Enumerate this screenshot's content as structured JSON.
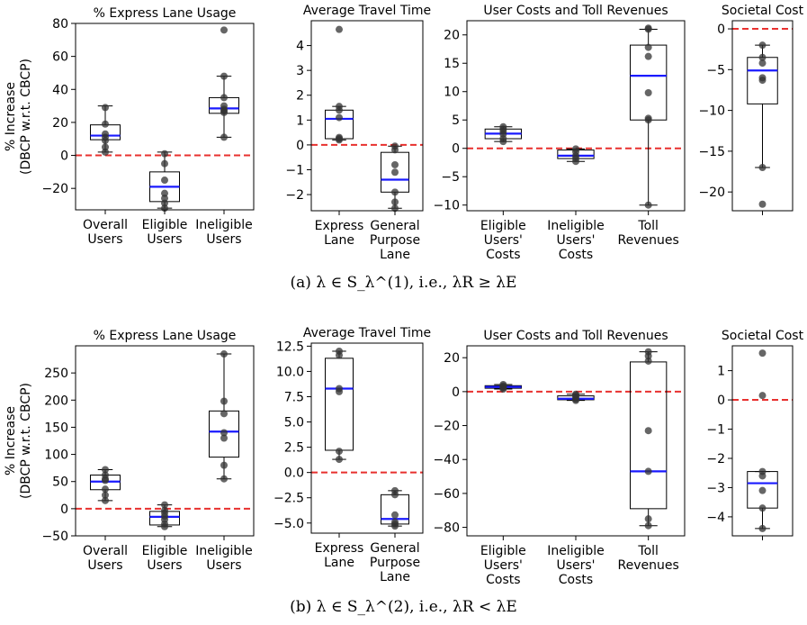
{
  "figure": {
    "caption_a": "(a) λ ∈ S_λ^(1), i.e., λR ≥ λE",
    "caption_b": "(b) λ ∈ S_λ^(2), i.e., λR < λE"
  },
  "colors": {
    "box": "#000000",
    "median": "#1a1aff",
    "zero_line": "#e8312f",
    "point": "#333333"
  },
  "chart_data": [
    {
      "type": "box",
      "row": "a",
      "title": "% Express Lane Usage",
      "ylabel": "% Increase\n(DBCP w.r.t. CBCP)",
      "categories": [
        "Overall\nUsers",
        "Eligible\nUsers",
        "Ineligible\nUsers"
      ],
      "ylim": [
        -33,
        80
      ],
      "yticks": [
        -20,
        0,
        20,
        40,
        60,
        80
      ],
      "ytick_labels": [
        "−20",
        "0",
        "20",
        "40",
        "60",
        "80"
      ],
      "reference_line": 0,
      "boxes": [
        {
          "whislo": 2,
          "q1": 9.5,
          "med": 12,
          "q3": 18.5,
          "whishi": 30,
          "points": [
            2,
            5,
            9,
            11,
            13,
            19,
            29
          ]
        },
        {
          "whislo": -32,
          "q1": -28,
          "med": -19,
          "q3": -10,
          "whishi": 2,
          "points": [
            -32,
            -29,
            -26,
            -23,
            -15,
            -5,
            1
          ]
        },
        {
          "whislo": 11,
          "q1": 25.5,
          "med": 28.5,
          "q3": 35,
          "whishi": 48,
          "points": [
            11,
            26,
            27,
            28,
            30,
            35,
            48,
            76
          ]
        }
      ]
    },
    {
      "type": "box",
      "row": "a",
      "title": "Average Travel Time",
      "categories": [
        "Express\nLane",
        "General\nPurpose\nLane"
      ],
      "ylim": [
        -2.65,
        5
      ],
      "yticks": [
        -2,
        -1,
        0,
        1,
        2,
        3,
        4
      ],
      "ytick_labels": [
        "−2",
        "−1",
        "0",
        "1",
        "2",
        "3",
        "4"
      ],
      "reference_line": 0,
      "boxes": [
        {
          "whislo": 0.2,
          "q1": 0.25,
          "med": 1.05,
          "q3": 1.4,
          "whishi": 1.55,
          "points": [
            0.2,
            0.25,
            0.3,
            1.1,
            1.4,
            1.55,
            4.65
          ]
        },
        {
          "whislo": -2.55,
          "q1": -1.9,
          "med": -1.4,
          "q3": -0.3,
          "whishi": -0.05,
          "points": [
            -2.55,
            -2.3,
            -1.9,
            -1.1,
            -0.8,
            -0.2,
            -0.05
          ]
        }
      ]
    },
    {
      "type": "box",
      "row": "a",
      "title": "User Costs and Toll Revenues",
      "categories": [
        "Eligible\nUsers'\nCosts",
        "Ineligible\nUsers'\nCosts",
        "Toll\nRevenues"
      ],
      "ylim": [
        -11,
        22.5
      ],
      "yticks": [
        -10,
        -5,
        0,
        5,
        10,
        15,
        20
      ],
      "ytick_labels": [
        "−10",
        "−5",
        "0",
        "5",
        "10",
        "15",
        "20"
      ],
      "reference_line": 0,
      "boxes": [
        {
          "whislo": 1.2,
          "q1": 1.7,
          "med": 2.6,
          "q3": 3.4,
          "whishi": 3.8,
          "points": [
            1.2,
            1.7,
            2.5,
            3.0,
            3.4,
            3.8
          ]
        },
        {
          "whislo": -2.3,
          "q1": -1.8,
          "med": -1.3,
          "q3": -0.3,
          "whishi": -0.1,
          "points": [
            -2.3,
            -1.8,
            -1.3,
            -0.6,
            -0.1
          ]
        },
        {
          "whislo": -10,
          "q1": 5,
          "med": 12.8,
          "q3": 18.2,
          "whishi": 21,
          "points": [
            -10,
            5,
            5.3,
            9.8,
            16.2,
            17.8,
            21,
            21.2
          ]
        }
      ]
    },
    {
      "type": "box",
      "row": "a",
      "title": "Societal Cost",
      "categories": [
        ""
      ],
      "ylim": [
        -22.3,
        1
      ],
      "yticks": [
        -20,
        -15,
        -10,
        -5,
        0
      ],
      "ytick_labels": [
        "−20",
        "−15",
        "−10",
        "−5",
        "0"
      ],
      "reference_line": 0,
      "boxes": [
        {
          "whislo": -17,
          "q1": -9.2,
          "med": -5.1,
          "q3": -3.5,
          "whishi": -2,
          "points": [
            -21.5,
            -17,
            -6.3,
            -6.0,
            -4.2,
            -3.5,
            -2.0
          ]
        }
      ]
    },
    {
      "type": "box",
      "row": "b",
      "title": "% Express Lane Usage",
      "ylabel": "% Increase\n(DBCP w.r.t. CBCP)",
      "categories": [
        "Overall\nUsers",
        "Eligible\nUsers",
        "Ineligible\nUsers"
      ],
      "ylim": [
        -50,
        300
      ],
      "yticks": [
        -50,
        0,
        50,
        100,
        150,
        200,
        250
      ],
      "ytick_labels": [
        "−50",
        "0",
        "50",
        "100",
        "150",
        "200",
        "250"
      ],
      "reference_line": 0,
      "boxes": [
        {
          "whislo": 15,
          "q1": 35,
          "med": 50,
          "q3": 62,
          "whishi": 72,
          "points": [
            15,
            25,
            36,
            52,
            55,
            62,
            72
          ]
        },
        {
          "whislo": -33,
          "q1": -30,
          "med": -15,
          "q3": -5,
          "whishi": 7,
          "points": [
            -33,
            -28,
            -20,
            -14,
            -8,
            -3,
            7
          ]
        },
        {
          "whislo": 55,
          "q1": 95,
          "med": 142,
          "q3": 180,
          "whishi": 285,
          "points": [
            55,
            80,
            130,
            140,
            175,
            198,
            285
          ]
        }
      ]
    },
    {
      "type": "box",
      "row": "b",
      "title": "Average Travel Time",
      "categories": [
        "Express\nLane",
        "General\nPurpose\nLane"
      ],
      "ylim": [
        -6,
        12.8
      ],
      "yticks": [
        -5,
        -2.5,
        0,
        2.5,
        5,
        7.5,
        10,
        12.5
      ],
      "ytick_labels": [
        "−5.0",
        "−2.5",
        "0.0",
        "2.5",
        "5.0",
        "7.5",
        "10.0",
        "12.5"
      ],
      "reference_line": 0,
      "boxes": [
        {
          "whislo": 1.3,
          "q1": 2.2,
          "med": 8.3,
          "q3": 11.3,
          "whishi": 12,
          "points": [
            1.3,
            2.1,
            8.0,
            8.3,
            11.6,
            12.0
          ]
        },
        {
          "whislo": -5.3,
          "q1": -5.1,
          "med": -4.6,
          "q3": -2.2,
          "whishi": -1.8,
          "points": [
            -5.3,
            -5.1,
            -4.9,
            -4.2,
            -2.2,
            -1.8
          ]
        }
      ]
    },
    {
      "type": "box",
      "row": "b",
      "title": "User Costs and Toll Revenues",
      "categories": [
        "Eligible\nUsers'\nCosts",
        "Ineligible\nUsers'\nCosts",
        "Toll\nRevenues"
      ],
      "ylim": [
        -85,
        27
      ],
      "yticks": [
        -80,
        -60,
        -40,
        -20,
        0,
        20
      ],
      "ytick_labels": [
        "−80",
        "−60",
        "−40",
        "−20",
        "0",
        "20"
      ],
      "reference_line": 0,
      "boxes": [
        {
          "whislo": 1.5,
          "q1": 2.0,
          "med": 2.8,
          "q3": 3.5,
          "whishi": 4.2,
          "points": [
            1.5,
            2.2,
            2.8,
            3.4,
            4.2
          ]
        },
        {
          "whislo": -5.2,
          "q1": -4.8,
          "med": -4.2,
          "q3": -2.5,
          "whishi": -1.5,
          "points": [
            -5.2,
            -4.5,
            -3.2,
            -2.2,
            -1.5
          ]
        },
        {
          "whislo": -79,
          "q1": -69,
          "med": -47,
          "q3": 17.5,
          "whishi": 23.5,
          "points": [
            -79,
            -75,
            -47,
            -23,
            18,
            21,
            23.5
          ]
        }
      ]
    },
    {
      "type": "box",
      "row": "b",
      "title": "Societal Cost",
      "categories": [
        ""
      ],
      "ylim": [
        -4.65,
        1.85
      ],
      "yticks": [
        -4,
        -3,
        -2,
        -1,
        0,
        1
      ],
      "ytick_labels": [
        "−4",
        "−3",
        "−2",
        "−1",
        "0",
        "1"
      ],
      "reference_line": 0,
      "boxes": [
        {
          "whislo": -4.4,
          "q1": -3.7,
          "med": -2.85,
          "q3": -2.45,
          "whishi": -2.45,
          "points": [
            -4.4,
            -3.7,
            -3.1,
            -2.6,
            -2.45,
            0.15,
            1.6
          ]
        }
      ]
    }
  ]
}
